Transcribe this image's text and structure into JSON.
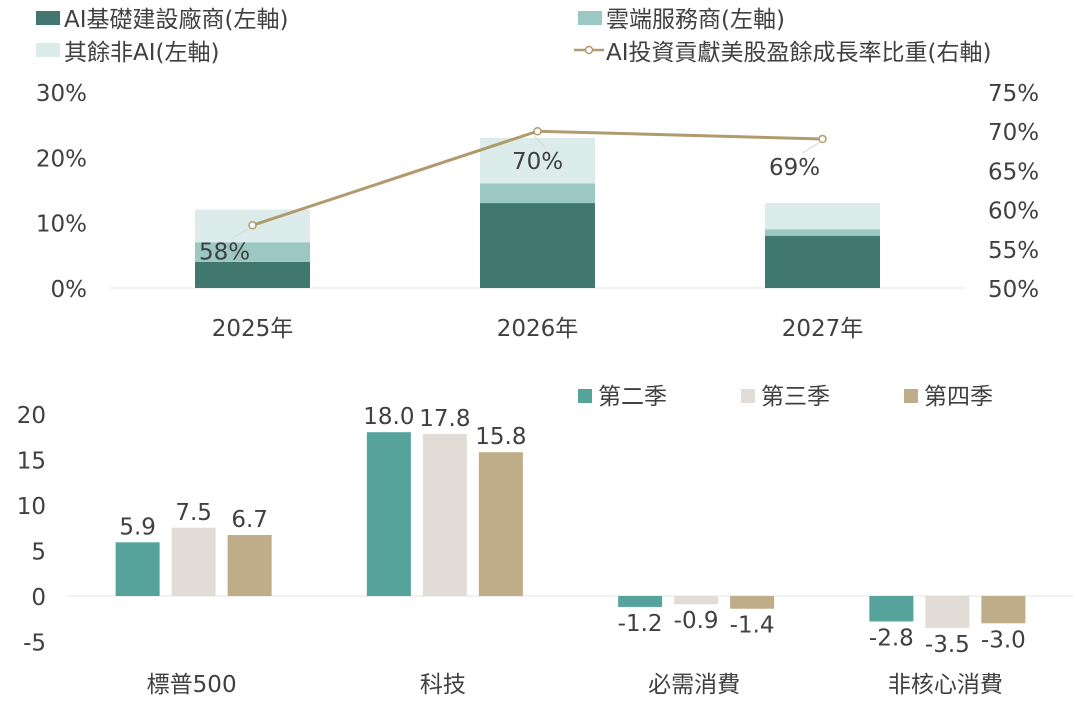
{
  "chart_data": [
    {
      "type": "bar",
      "stacked": true,
      "categories": [
        "2025年",
        "2026年",
        "2027年"
      ],
      "series": [
        {
          "name": "AI基礎建設廠商(左軸)",
          "values": [
            4,
            13,
            8
          ],
          "color": "#40776f",
          "axis": "left"
        },
        {
          "name": "雲端服務商(左軸)",
          "values": [
            3,
            3,
            1
          ],
          "color": "#9bc8c3",
          "axis": "left"
        },
        {
          "name": "其餘非AI(左軸)",
          "values": [
            5,
            7,
            4
          ],
          "color": "#dbecea",
          "axis": "left"
        }
      ],
      "line_series": {
        "name": "AI投資貢獻美股盈餘成長率比重(右軸)",
        "type": "line",
        "values": [
          58,
          70,
          69
        ],
        "labels": [
          "58%",
          "70%",
          "69%"
        ],
        "color": "#b09a6e",
        "axis": "right"
      },
      "y_left": {
        "ylim": [
          0,
          30
        ],
        "ticks": [
          "0%",
          "10%",
          "20%",
          "30%"
        ]
      },
      "y_right": {
        "ylim": [
          50,
          75
        ],
        "ticks": [
          "50%",
          "55%",
          "60%",
          "65%",
          "70%",
          "75%"
        ]
      },
      "legend": "top",
      "grid": false
    },
    {
      "type": "bar",
      "categories": [
        "標普500",
        "科技",
        "必需消費",
        "非核心消費"
      ],
      "series": [
        {
          "name": "第二季",
          "values": [
            5.9,
            18.0,
            -1.2,
            -2.8
          ],
          "labels": [
            "5.9",
            "18.0",
            "-1.2",
            "-2.8"
          ],
          "color": "#55a39a"
        },
        {
          "name": "第三季",
          "values": [
            7.5,
            17.8,
            -0.9,
            -3.5
          ],
          "labels": [
            "7.5",
            "17.8",
            "-0.9",
            "-3.5"
          ],
          "color": "#e1ddd6"
        },
        {
          "name": "第四季",
          "values": [
            6.7,
            15.8,
            -1.4,
            -3.0
          ],
          "labels": [
            "6.7",
            "15.8",
            "-1.4",
            "-3.0"
          ],
          "color": "#bfac88"
        }
      ],
      "ylim": [
        -5,
        20
      ],
      "ticks": [
        "-5",
        "0",
        "5",
        "10",
        "15",
        "20"
      ],
      "legend": "top-right",
      "grid": false
    }
  ]
}
